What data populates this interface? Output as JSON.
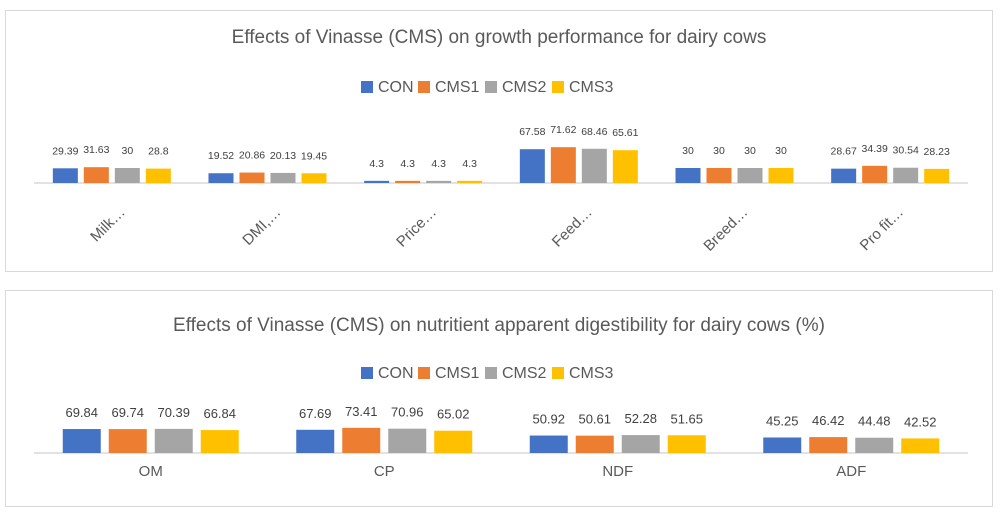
{
  "chart_data": [
    {
      "type": "bar",
      "title": "Effects of Vinasse (CMS) on growth performance for dairy cows",
      "categories": [
        "Milk…",
        "DMI,…",
        "Price…",
        "Feed…",
        "Breed…",
        "Pro fit…"
      ],
      "series": [
        {
          "name": "CON",
          "color": "#4472c4",
          "values": [
            29.39,
            19.52,
            4.3,
            67.58,
            30,
            28.67
          ]
        },
        {
          "name": "CMS1",
          "color": "#ed7d31",
          "values": [
            31.63,
            20.86,
            4.3,
            71.62,
            30,
            34.39
          ]
        },
        {
          "name": "CMS2",
          "color": "#a5a5a5",
          "values": [
            30,
            20.13,
            4.3,
            68.46,
            30,
            30.54
          ]
        },
        {
          "name": "CMS3",
          "color": "#ffc000",
          "values": [
            28.8,
            19.45,
            4.3,
            65.61,
            30,
            28.23
          ]
        }
      ],
      "legend": "top",
      "grid": false,
      "ylim": [
        0,
        140
      ]
    },
    {
      "type": "bar",
      "title": "Effects of Vinasse (CMS) on nutritient apparent digestibility for dairy cows (%)",
      "categories": [
        "OM",
        "CP",
        "NDF",
        "ADF"
      ],
      "series": [
        {
          "name": "CON",
          "color": "#4472c4",
          "values": [
            69.84,
            67.69,
            50.92,
            45.25
          ]
        },
        {
          "name": "CMS1",
          "color": "#ed7d31",
          "values": [
            69.74,
            73.41,
            50.61,
            46.42
          ]
        },
        {
          "name": "CMS2",
          "color": "#a5a5a5",
          "values": [
            70.39,
            70.96,
            52.28,
            44.48
          ]
        },
        {
          "name": "CMS3",
          "color": "#ffc000",
          "values": [
            66.84,
            65.02,
            51.65,
            42.52
          ]
        }
      ],
      "legend": "top",
      "grid": false,
      "ylim": [
        0,
        140
      ]
    }
  ]
}
